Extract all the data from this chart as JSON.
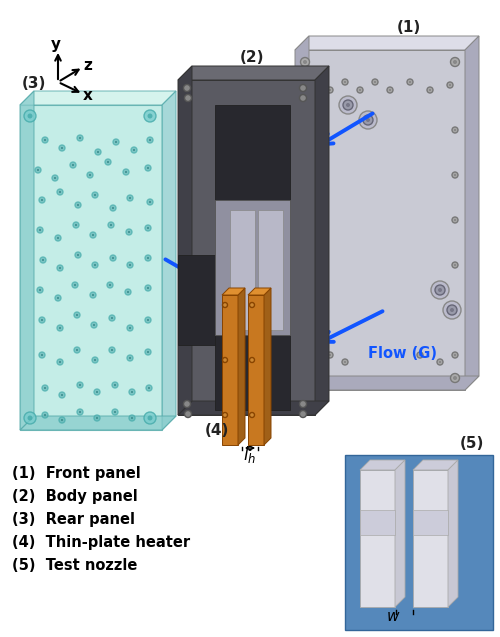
{
  "background_color": "#ffffff",
  "legend_items": [
    "(1)  Front panel",
    "(2)  Body panel",
    "(3)  Rear panel",
    "(4)  Thin-plate heater",
    "(5)  Test nozzle"
  ],
  "flow_label": "Flow (G)",
  "flow_label_color": "#1155ff",
  "panel1_face_color": "#c9cad4",
  "panel1_top_color": "#dddde8",
  "panel1_side_color": "#aaaabc",
  "panel2_face_color": "#5a5a62",
  "panel2_top_color": "#6a6a72",
  "panel2_side_color": "#404048",
  "panel3_face_color": "#b0e8e0",
  "panel3_top_color": "#c8f0e8",
  "panel3_side_color": "#88cccc",
  "heater_color": "#c87820",
  "heater_side_color": "#a06018",
  "heater_top_color": "#e09030",
  "inset_bg": "#5588bb",
  "arrow_color": "#1155ff",
  "label_color": "#000000",
  "number_label_color": "#222222",
  "legend_fontsize": 10.5
}
